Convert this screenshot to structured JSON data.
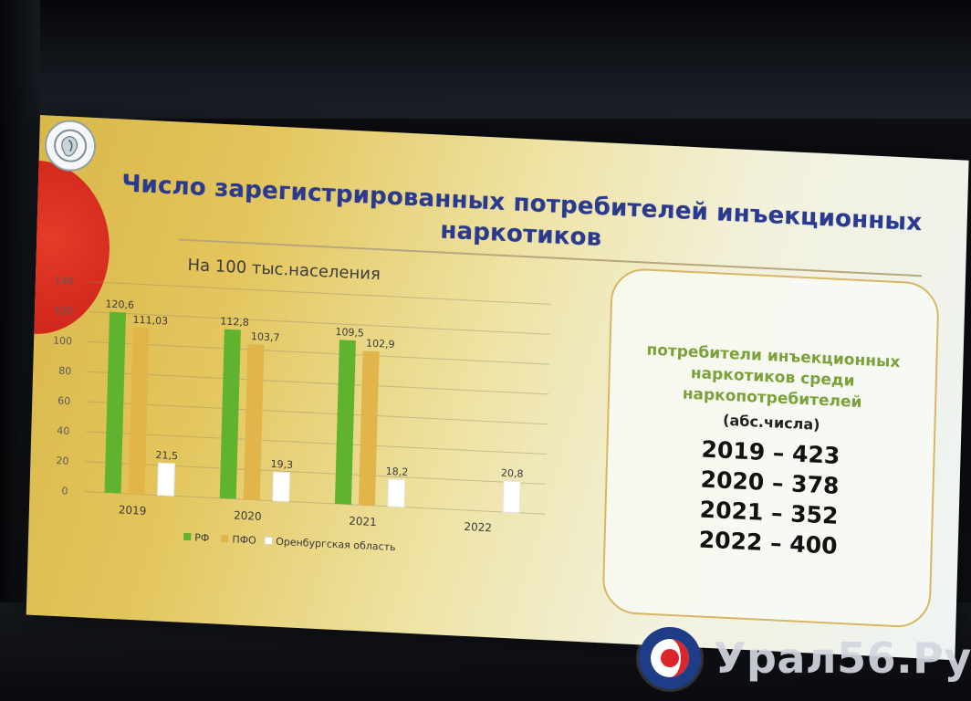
{
  "slide": {
    "title_line1": "Число зарегистрированных потребителей инъекционных",
    "title_line2": "наркотиков",
    "subtitle": "На 100 тыс.населения"
  },
  "info_box": {
    "desc_line1": "потребители инъекционных",
    "desc_line2": "наркотиков среди",
    "desc_line3": "наркопотребителей",
    "note": "(абс.числа)",
    "rows": [
      "2019 – 423",
      "2020 – 378",
      "2021 – 352",
      "2022 – 400"
    ]
  },
  "watermark": {
    "text": "Урал56.Ру"
  },
  "colors": {
    "rf": "#5fb32e",
    "pfo": "#e2b54a",
    "oren": "#ffffff",
    "title": "#2a3a8e",
    "box_text": "#7ba23a"
  },
  "chart_data": {
    "type": "bar",
    "categories": [
      "2019",
      "2020",
      "2021",
      "2022"
    ],
    "series": [
      {
        "name": "РФ",
        "values": [
          120.6,
          112.8,
          109.5,
          null
        ],
        "labels": [
          "120,6",
          "112,8",
          "109,5",
          ""
        ]
      },
      {
        "name": "ПФО",
        "values": [
          111.03,
          103.7,
          102.9,
          null
        ],
        "labels": [
          "111,03",
          "103,7",
          "102,9",
          ""
        ]
      },
      {
        "name": "Оренбургская область",
        "values": [
          21.5,
          19.3,
          18.2,
          20.8
        ],
        "labels": [
          "21,5",
          "19,3",
          "18,2",
          "20,8"
        ]
      }
    ],
    "yticks": [
      "0",
      "20",
      "40",
      "60",
      "80",
      "100",
      "120",
      "140"
    ],
    "ylim": [
      0,
      140
    ],
    "grid": true,
    "legend_position": "bottom"
  }
}
